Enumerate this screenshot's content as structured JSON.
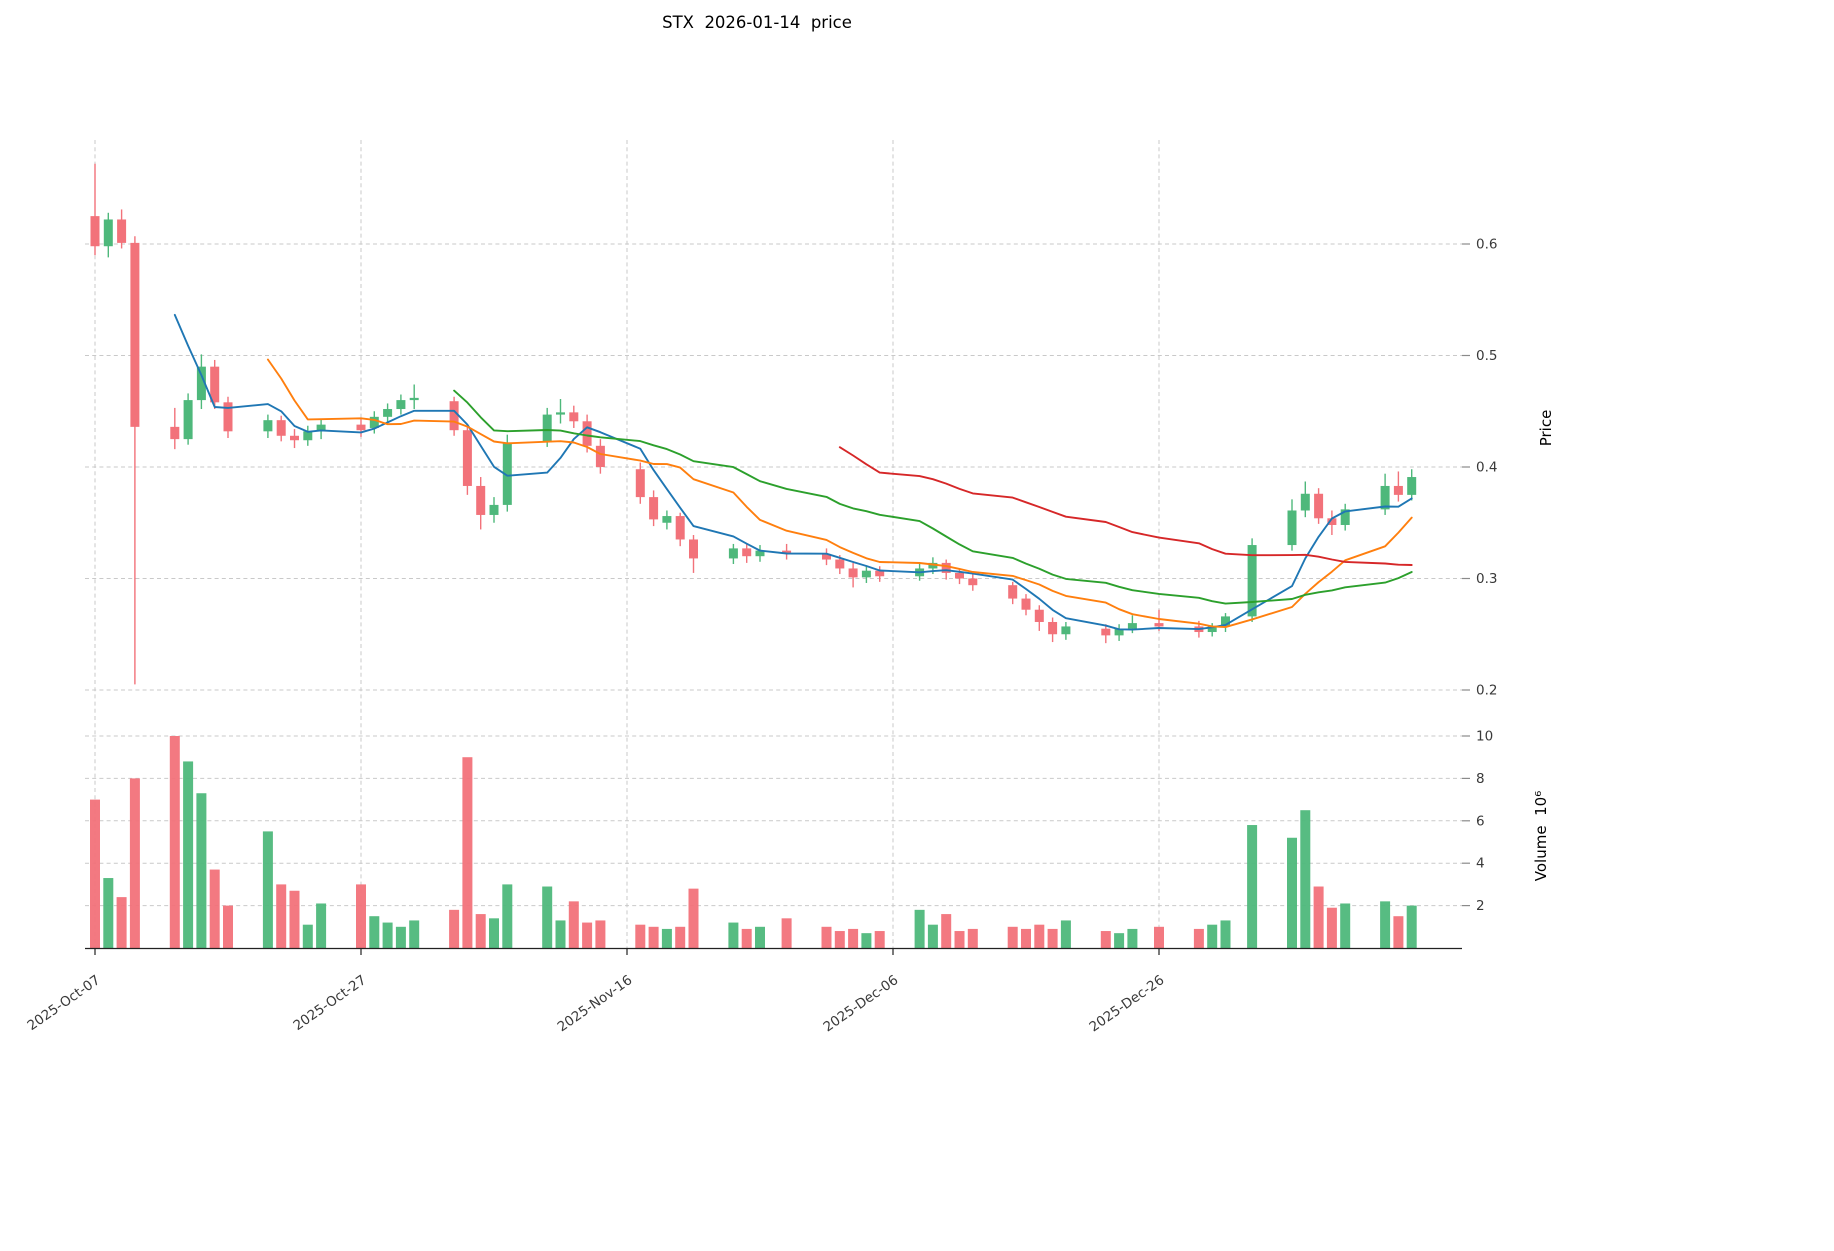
{
  "colors": {
    "up": "#4eb87b",
    "down": "#f2727a",
    "ma_blue": "#1f77b4",
    "ma_orange": "#ff7f0e",
    "ma_green": "#2ca02c",
    "ma_red": "#d62728",
    "grid": "#c9c9c9",
    "background": "#ffffff"
  },
  "chart_data": {
    "type": "candlestick",
    "title": "STX  2026-01-14  price",
    "symbol": "STX",
    "as_of_label": "2026-01-14",
    "grid": true,
    "price_axis": {
      "label": "Price",
      "side": "right",
      "ticks": [
        0.2,
        0.3,
        0.4,
        0.5,
        0.6
      ],
      "ylim": [
        0.19,
        0.7
      ]
    },
    "volume_axis": {
      "label": "Volume  10⁶",
      "side": "right",
      "ticks": [
        2,
        4,
        6,
        8,
        10
      ],
      "unit": 1000000,
      "ylim": [
        0,
        10.6
      ]
    },
    "x_axis": {
      "start": "2025-10-07",
      "end": "2026-01-14",
      "ticks": [
        {
          "label": "2025-Oct-07",
          "date": "2025-10-07"
        },
        {
          "label": "2025-Oct-27",
          "date": "2025-10-27"
        },
        {
          "label": "2025-Nov-16",
          "date": "2025-11-16"
        },
        {
          "label": "2025-Dec-06",
          "date": "2025-12-06"
        },
        {
          "label": "2025-Dec-26",
          "date": "2025-12-26"
        }
      ]
    },
    "indicators": [
      {
        "name": "MA5",
        "window": 5,
        "color": "#1f77b4"
      },
      {
        "name": "MA10",
        "window": 10,
        "color": "#ff7f0e"
      },
      {
        "name": "MA20",
        "window": 20,
        "color": "#2ca02c"
      },
      {
        "name": "MA40",
        "window": 40,
        "color": "#d62728"
      }
    ],
    "columns": [
      "date",
      "open",
      "high",
      "low",
      "close",
      "volume_millions"
    ],
    "candles": [
      [
        "2025-10-07",
        0.625,
        0.672,
        0.59,
        0.598,
        7.0
      ],
      [
        "2025-10-08",
        0.598,
        0.628,
        0.588,
        0.622,
        3.3
      ],
      [
        "2025-10-09",
        0.622,
        0.631,
        0.596,
        0.601,
        2.4
      ],
      [
        "2025-10-10",
        0.601,
        0.607,
        0.205,
        0.436,
        8.0
      ],
      [
        "2025-10-13",
        0.436,
        0.453,
        0.416,
        0.425,
        10.0
      ],
      [
        "2025-10-14",
        0.425,
        0.466,
        0.42,
        0.46,
        8.8
      ],
      [
        "2025-10-15",
        0.46,
        0.501,
        0.452,
        0.49,
        7.3
      ],
      [
        "2025-10-16",
        0.49,
        0.496,
        0.452,
        0.458,
        3.7
      ],
      [
        "2025-10-17",
        0.458,
        0.463,
        0.426,
        0.432,
        2.0
      ],
      [
        "2025-10-20",
        0.432,
        0.447,
        0.426,
        0.442,
        5.5
      ],
      [
        "2025-10-21",
        0.442,
        0.446,
        0.423,
        0.428,
        3.0
      ],
      [
        "2025-10-22",
        0.428,
        0.434,
        0.417,
        0.424,
        2.7
      ],
      [
        "2025-10-23",
        0.424,
        0.437,
        0.419,
        0.432,
        1.1
      ],
      [
        "2025-10-24",
        0.432,
        0.443,
        0.425,
        0.438,
        2.1
      ],
      [
        "2025-10-27",
        0.438,
        0.443,
        0.427,
        0.433,
        3.0
      ],
      [
        "2025-10-28",
        0.435,
        0.45,
        0.43,
        0.445,
        1.5
      ],
      [
        "2025-10-29",
        0.445,
        0.457,
        0.439,
        0.452,
        1.2
      ],
      [
        "2025-10-30",
        0.452,
        0.465,
        0.447,
        0.46,
        1.0
      ],
      [
        "2025-10-31",
        0.46,
        0.474,
        0.452,
        0.462,
        1.3
      ],
      [
        "2025-11-03",
        0.459,
        0.463,
        0.428,
        0.433,
        1.8
      ],
      [
        "2025-11-04",
        0.433,
        0.437,
        0.375,
        0.383,
        9.0
      ],
      [
        "2025-11-05",
        0.383,
        0.391,
        0.344,
        0.357,
        1.6
      ],
      [
        "2025-11-06",
        0.357,
        0.373,
        0.35,
        0.366,
        1.4
      ],
      [
        "2025-11-07",
        0.366,
        0.429,
        0.36,
        0.422,
        3.0
      ],
      [
        "2025-11-10",
        0.422,
        0.453,
        0.418,
        0.447,
        2.9
      ],
      [
        "2025-11-11",
        0.447,
        0.461,
        0.439,
        0.449,
        1.3
      ],
      [
        "2025-11-12",
        0.449,
        0.455,
        0.435,
        0.441,
        2.2
      ],
      [
        "2025-11-13",
        0.441,
        0.447,
        0.413,
        0.419,
        1.2
      ],
      [
        "2025-11-14",
        0.419,
        0.425,
        0.394,
        0.4,
        1.3
      ],
      [
        "2025-11-17",
        0.398,
        0.404,
        0.367,
        0.373,
        1.1
      ],
      [
        "2025-11-18",
        0.373,
        0.379,
        0.347,
        0.353,
        1.0
      ],
      [
        "2025-11-19",
        0.35,
        0.361,
        0.344,
        0.356,
        0.9
      ],
      [
        "2025-11-20",
        0.356,
        0.359,
        0.329,
        0.335,
        1.0
      ],
      [
        "2025-11-21",
        0.335,
        0.339,
        0.305,
        0.318,
        2.8
      ],
      [
        "2025-11-24",
        0.318,
        0.331,
        0.313,
        0.327,
        1.2
      ],
      [
        "2025-11-25",
        0.327,
        0.331,
        0.314,
        0.32,
        0.9
      ],
      [
        "2025-11-26",
        0.32,
        0.33,
        0.315,
        0.325,
        1.0
      ],
      [
        "2025-11-28",
        0.325,
        0.331,
        0.317,
        0.322,
        1.4
      ],
      [
        "2025-12-01",
        0.322,
        0.327,
        0.312,
        0.317,
        1.0
      ],
      [
        "2025-12-02",
        0.317,
        0.321,
        0.304,
        0.309,
        0.8
      ],
      [
        "2025-12-03",
        0.309,
        0.314,
        0.292,
        0.301,
        0.9
      ],
      [
        "2025-12-04",
        0.301,
        0.311,
        0.296,
        0.307,
        0.7
      ],
      [
        "2025-12-05",
        0.307,
        0.311,
        0.297,
        0.302,
        0.8
      ],
      [
        "2025-12-08",
        0.302,
        0.313,
        0.298,
        0.309,
        1.8
      ],
      [
        "2025-12-09",
        0.309,
        0.319,
        0.304,
        0.314,
        1.1
      ],
      [
        "2025-12-10",
        0.314,
        0.317,
        0.299,
        0.305,
        1.6
      ],
      [
        "2025-12-11",
        0.305,
        0.309,
        0.295,
        0.3,
        0.8
      ],
      [
        "2025-12-12",
        0.3,
        0.304,
        0.289,
        0.294,
        0.9
      ],
      [
        "2025-12-15",
        0.294,
        0.297,
        0.277,
        0.282,
        1.0
      ],
      [
        "2025-12-16",
        0.282,
        0.286,
        0.267,
        0.272,
        0.9
      ],
      [
        "2025-12-17",
        0.272,
        0.276,
        0.253,
        0.261,
        1.1
      ],
      [
        "2025-12-18",
        0.261,
        0.265,
        0.243,
        0.25,
        0.9
      ],
      [
        "2025-12-19",
        0.25,
        0.261,
        0.245,
        0.257,
        1.3
      ],
      [
        "2025-12-22",
        0.255,
        0.259,
        0.242,
        0.249,
        0.8
      ],
      [
        "2025-12-23",
        0.249,
        0.259,
        0.244,
        0.255,
        0.7
      ],
      [
        "2025-12-24",
        0.255,
        0.267,
        0.251,
        0.26,
        0.9
      ],
      [
        "2025-12-26",
        0.26,
        0.272,
        0.253,
        0.257,
        1.0
      ],
      [
        "2025-12-29",
        0.257,
        0.262,
        0.247,
        0.252,
        0.9
      ],
      [
        "2025-12-30",
        0.252,
        0.26,
        0.248,
        0.257,
        1.1
      ],
      [
        "2025-12-31",
        0.257,
        0.269,
        0.252,
        0.266,
        1.3
      ],
      [
        "2026-01-02",
        0.266,
        0.336,
        0.261,
        0.33,
        5.8
      ],
      [
        "2026-01-05",
        0.33,
        0.371,
        0.325,
        0.361,
        5.2
      ],
      [
        "2026-01-06",
        0.361,
        0.387,
        0.355,
        0.376,
        6.5
      ],
      [
        "2026-01-07",
        0.376,
        0.381,
        0.349,
        0.354,
        2.9
      ],
      [
        "2026-01-08",
        0.354,
        0.361,
        0.339,
        0.348,
        1.9
      ],
      [
        "2026-01-09",
        0.348,
        0.367,
        0.343,
        0.362,
        2.1
      ],
      [
        "2026-01-12",
        0.362,
        0.394,
        0.357,
        0.383,
        2.2
      ],
      [
        "2026-01-13",
        0.383,
        0.396,
        0.369,
        0.375,
        1.5
      ],
      [
        "2026-01-14",
        0.375,
        0.398,
        0.37,
        0.391,
        2.0
      ]
    ]
  }
}
